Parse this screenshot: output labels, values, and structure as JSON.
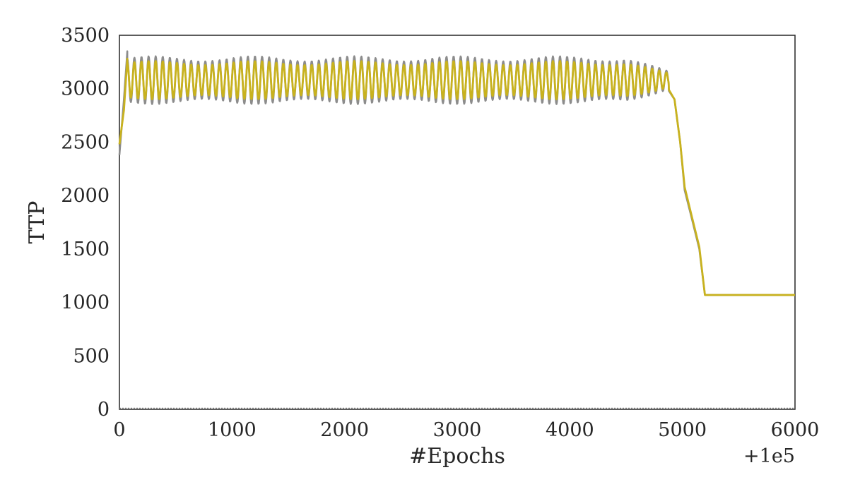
{
  "chart_data": {
    "type": "line",
    "title": "",
    "xlabel": "#Epochs",
    "ylabel": "TTP",
    "x_offset_label": "+1e5",
    "xlim": [
      0,
      6000
    ],
    "ylim": [
      0,
      3500
    ],
    "xticks": [
      0,
      1000,
      2000,
      3000,
      4000,
      5000,
      6000
    ],
    "yticks": [
      0,
      500,
      1000,
      1500,
      2000,
      2500,
      3000,
      3500
    ],
    "grid": false,
    "legend": "none",
    "series": [
      {
        "color": "#8c8c8c",
        "oscillation": {
          "x_start": 0,
          "x_end": 4880,
          "center": 3080,
          "amplitude": 200,
          "period": 63
        },
        "points": [
          [
            0,
            2380
          ],
          [
            40,
            2900
          ],
          [
            70,
            3350
          ],
          [
            4880,
            2980
          ],
          [
            4930,
            2900
          ],
          [
            4980,
            2500
          ],
          [
            5020,
            2050
          ],
          [
            5080,
            1800
          ],
          [
            5150,
            1500
          ],
          [
            5200,
            1070
          ],
          [
            6000,
            1070
          ]
        ]
      },
      {
        "color": "#c8b21e",
        "oscillation": {
          "x_start": 0,
          "x_end": 4880,
          "center": 3080,
          "amplitude": 160,
          "period": 63
        },
        "points": [
          [
            0,
            2480
          ],
          [
            40,
            2800
          ],
          [
            70,
            3280
          ],
          [
            4880,
            2990
          ],
          [
            4930,
            2900
          ],
          [
            4980,
            2500
          ],
          [
            5020,
            2080
          ],
          [
            5080,
            1820
          ],
          [
            5150,
            1520
          ],
          [
            5200,
            1070
          ],
          [
            6000,
            1070
          ]
        ]
      }
    ]
  }
}
